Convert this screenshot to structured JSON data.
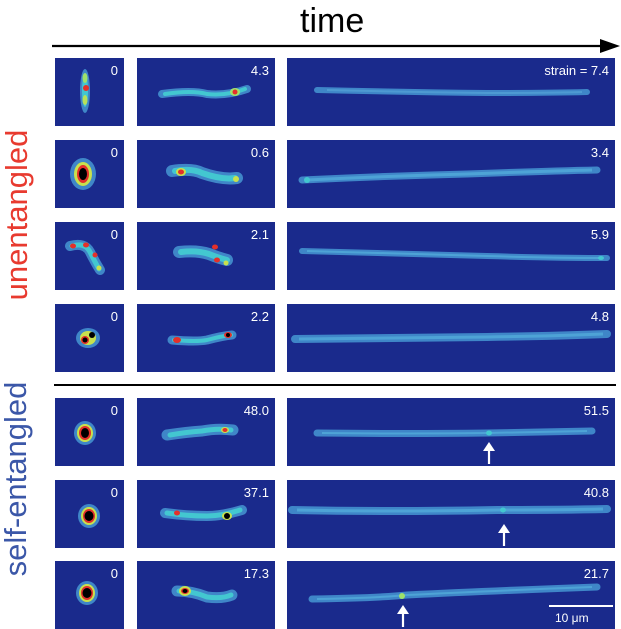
{
  "header": {
    "time_label": "time"
  },
  "groups": {
    "unentangled": "unentangled",
    "self_entangled": "self-entangled"
  },
  "rows": [
    {
      "t1": "0",
      "t2": "4.3",
      "t3": "strain = 7.4"
    },
    {
      "t1": "0",
      "t2": "0.6",
      "t3": "3.4"
    },
    {
      "t1": "0",
      "t2": "2.1",
      "t3": "5.9"
    },
    {
      "t1": "0",
      "t2": "2.2",
      "t3": "4.8"
    },
    {
      "t1": "0",
      "t2": "48.0",
      "t3": "51.5"
    },
    {
      "t1": "0",
      "t2": "37.1",
      "t3": "40.8"
    },
    {
      "t1": "0",
      "t2": "17.3",
      "t3": "21.7"
    }
  ],
  "scale_bar": {
    "label": "10 μm"
  },
  "colors": {
    "background": "#1a2a8c",
    "unentangled": "#e83a2f",
    "self_entangled": "#3b57a8"
  }
}
